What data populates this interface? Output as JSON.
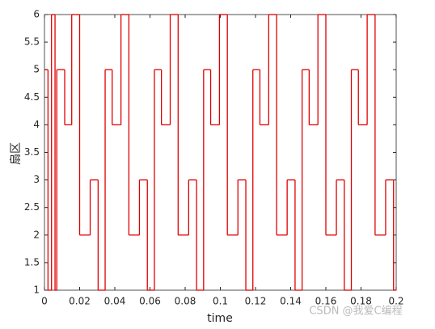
{
  "chart_data": {
    "type": "step",
    "xlabel": "time",
    "ylabel": "扇区",
    "x": [
      0,
      0.002,
      0.004,
      0.006,
      0.007,
      0.0115,
      0.0155,
      0.02,
      0.026,
      0.0305,
      0.0345,
      0.0385,
      0.0435,
      0.048,
      0.054,
      0.0585,
      0.0625,
      0.0665,
      0.0715,
      0.076,
      0.082,
      0.0865,
      0.0905,
      0.0945,
      0.0995,
      0.104,
      0.11,
      0.1145,
      0.1185,
      0.1225,
      0.1275,
      0.132,
      0.138,
      0.1425,
      0.1465,
      0.1505,
      0.1555,
      0.16,
      0.166,
      0.1705,
      0.1745,
      0.1785,
      0.1835,
      0.188,
      0.194,
      0.1985
    ],
    "values": [
      5,
      1,
      6,
      1,
      5,
      4,
      6,
      2,
      3,
      1,
      5,
      4,
      6,
      2,
      3,
      1,
      5,
      4,
      6,
      2,
      3,
      1,
      5,
      4,
      6,
      2,
      3,
      1,
      5,
      4,
      6,
      2,
      3,
      1,
      5,
      4,
      6,
      2,
      3,
      1,
      5,
      4,
      6,
      2,
      3,
      1
    ],
    "color": "#e00000",
    "xlim": [
      0,
      0.2
    ],
    "xticks": [
      0,
      0.02,
      0.04,
      0.06,
      0.08,
      0.1,
      0.12,
      0.14,
      0.16,
      0.18,
      0.2
    ],
    "ylim": [
      1,
      6
    ],
    "yticks": [
      1,
      1.5,
      2,
      2.5,
      3,
      3.5,
      4,
      4.5,
      5,
      5.5,
      6
    ],
    "watermark": "CSDN @我爱C编程"
  }
}
